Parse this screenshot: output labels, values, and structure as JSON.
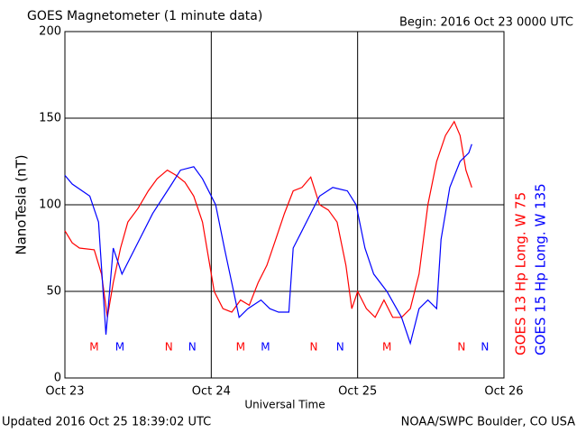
{
  "chart_data": {
    "type": "line",
    "title": "GOES Magnetometer (1 minute data)",
    "subtitle": "Begin:  2016 Oct 23 0000 UTC",
    "y_label": "NanoTesla (nT)",
    "x_label": "Universal Time",
    "footer_left": "Updated 2016 Oct 25 18:39:02 UTC",
    "footer_right": "NOAA/SWPC Boulder, CO USA",
    "xlim": [
      0,
      3
    ],
    "xticks": [
      {
        "value": 0,
        "label": "Oct 23"
      },
      {
        "value": 1,
        "label": "Oct 24"
      },
      {
        "value": 2,
        "label": "Oct 25"
      },
      {
        "value": 3,
        "label": "Oct 26"
      }
    ],
    "ylim": [
      0,
      200
    ],
    "yticks": [
      0,
      50,
      100,
      150,
      200
    ],
    "grid": true,
    "series": [
      {
        "name": "GOES 13 Hp  Long. W 75",
        "color": "#ff0000",
        "x": [
          0,
          0.05,
          0.1,
          0.2,
          0.25,
          0.29,
          0.33,
          0.38,
          0.43,
          0.5,
          0.57,
          0.63,
          0.7,
          0.76,
          0.82,
          0.88,
          0.94,
          0.98,
          1.02,
          1.08,
          1.14,
          1.2,
          1.26,
          1.32,
          1.38,
          1.44,
          1.5,
          1.56,
          1.62,
          1.68,
          1.74,
          1.8,
          1.86,
          1.92,
          1.96,
          2.0,
          2.06,
          2.12,
          2.18,
          2.24,
          2.3,
          2.36,
          2.42,
          2.48,
          2.54,
          2.6,
          2.66,
          2.7,
          2.74,
          2.78
        ],
        "values": [
          85,
          78,
          75,
          74,
          60,
          35,
          55,
          75,
          90,
          98,
          108,
          115,
          120,
          117,
          113,
          105,
          90,
          70,
          50,
          40,
          38,
          45,
          42,
          55,
          65,
          80,
          95,
          108,
          110,
          116,
          100,
          97,
          90,
          65,
          40,
          50,
          40,
          35,
          45,
          35,
          35,
          40,
          60,
          100,
          125,
          140,
          148,
          140,
          120,
          110
        ]
      },
      {
        "name": "GOES 15 Hp  Long. W 135",
        "color": "#0000ff",
        "x": [
          0,
          0.05,
          0.17,
          0.23,
          0.28,
          0.33,
          0.39,
          0.48,
          0.6,
          0.73,
          0.79,
          0.88,
          0.94,
          1.03,
          1.09,
          1.19,
          1.25,
          1.34,
          1.4,
          1.46,
          1.53,
          1.56,
          1.62,
          1.68,
          1.74,
          1.83,
          1.93,
          1.99,
          2.05,
          2.11,
          2.2,
          2.3,
          2.36,
          2.42,
          2.48,
          2.54,
          2.57,
          2.63,
          2.7,
          2.76,
          2.78
        ],
        "values": [
          117,
          112,
          105,
          90,
          25,
          75,
          60,
          75,
          95,
          112,
          120,
          122,
          115,
          100,
          75,
          35,
          40,
          45,
          40,
          38,
          38,
          75,
          85,
          95,
          105,
          110,
          108,
          100,
          75,
          60,
          50,
          35,
          20,
          40,
          45,
          40,
          80,
          110,
          125,
          130,
          135
        ]
      }
    ],
    "markers": [
      {
        "label": "M",
        "x": 0.2,
        "color": "#ff0000"
      },
      {
        "label": "M",
        "x": 0.375,
        "color": "#0000ff"
      },
      {
        "label": "N",
        "x": 0.71,
        "color": "#ff0000"
      },
      {
        "label": "N",
        "x": 0.87,
        "color": "#0000ff"
      },
      {
        "label": "M",
        "x": 1.2,
        "color": "#ff0000"
      },
      {
        "label": "M",
        "x": 1.37,
        "color": "#0000ff"
      },
      {
        "label": "N",
        "x": 1.7,
        "color": "#ff0000"
      },
      {
        "label": "N",
        "x": 1.88,
        "color": "#0000ff"
      },
      {
        "label": "M",
        "x": 2.2,
        "color": "#ff0000"
      },
      {
        "label": "N",
        "x": 2.71,
        "color": "#ff0000"
      },
      {
        "label": "N",
        "x": 2.87,
        "color": "#0000ff"
      }
    ]
  }
}
